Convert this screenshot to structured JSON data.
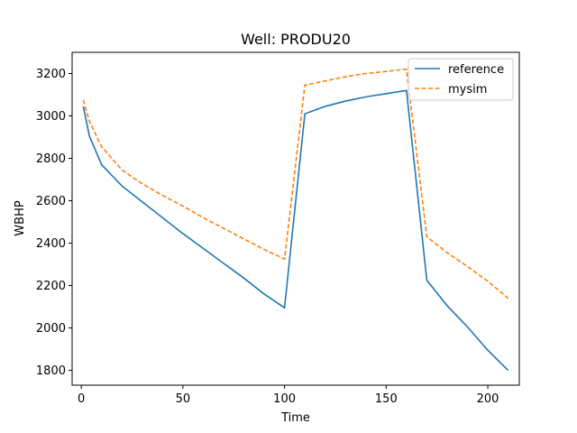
{
  "chart_data": {
    "type": "line",
    "title": "Well: PRODU20",
    "xlabel": "Time",
    "ylabel": "WBHP",
    "xlim": [
      -4.5,
      215.5
    ],
    "ylim": [
      1730,
      3300
    ],
    "xticks": [
      0,
      50,
      100,
      150,
      200
    ],
    "yticks": [
      1800,
      2000,
      2200,
      2400,
      2600,
      2800,
      3000,
      3200
    ],
    "grid": false,
    "legend_position": "top-right",
    "series": [
      {
        "name": "reference",
        "color": "#1f77b4",
        "style": "solid",
        "x": [
          1,
          4,
          10,
          20,
          30,
          40,
          50,
          60,
          70,
          80,
          90,
          100,
          110,
          120,
          130,
          140,
          150,
          160,
          170,
          180,
          190,
          200,
          210
        ],
        "y": [
          3045,
          2905,
          2770,
          2670,
          2595,
          2520,
          2445,
          2375,
          2305,
          2235,
          2160,
          2095,
          3010,
          3045,
          3070,
          3090,
          3105,
          3120,
          2225,
          2105,
          2005,
          1895,
          1800
        ]
      },
      {
        "name": "mysim",
        "color": "#ff7f0e",
        "style": "dashed",
        "x": [
          1,
          4,
          10,
          20,
          30,
          40,
          50,
          60,
          70,
          80,
          90,
          100,
          110,
          120,
          130,
          140,
          150,
          160,
          170,
          180,
          190,
          200,
          210
        ],
        "y": [
          3075,
          2975,
          2855,
          2745,
          2680,
          2625,
          2575,
          2520,
          2470,
          2420,
          2370,
          2325,
          3145,
          3165,
          3185,
          3200,
          3210,
          3220,
          2430,
          2355,
          2290,
          2220,
          2140
        ]
      }
    ]
  }
}
